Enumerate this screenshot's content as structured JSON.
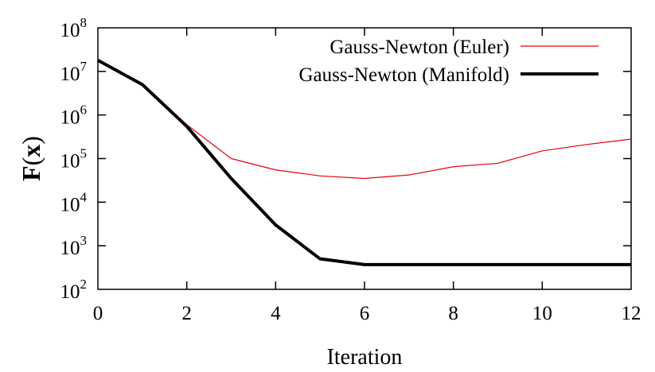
{
  "chart_data": {
    "type": "line",
    "xlabel": "Iteration",
    "ylabel": "F(x)",
    "ylabel_parts": {
      "func": "F",
      "var": "x"
    },
    "xlim": [
      0,
      12
    ],
    "ylim": [
      100,
      100000000
    ],
    "yscale": "log",
    "grid": false,
    "legend_position": "top-right",
    "x_ticks": [
      "0",
      "2",
      "4",
      "6",
      "8",
      "10",
      "12"
    ],
    "y_ticks": [
      {
        "base": "10",
        "exp": "2"
      },
      {
        "base": "10",
        "exp": "3"
      },
      {
        "base": "10",
        "exp": "4"
      },
      {
        "base": "10",
        "exp": "5"
      },
      {
        "base": "10",
        "exp": "6"
      },
      {
        "base": "10",
        "exp": "7"
      },
      {
        "base": "10",
        "exp": "8"
      }
    ],
    "series": [
      {
        "name": "Gauss-Newton (Euler)",
        "color": "#e8000b",
        "x": [
          0,
          1,
          2,
          3,
          4,
          5,
          6,
          7,
          8,
          9,
          10,
          11,
          12
        ],
        "y": [
          18000000,
          5000000,
          600000,
          100000,
          55000,
          40000,
          35000,
          42000,
          65000,
          78000,
          150000,
          210000,
          280000
        ]
      },
      {
        "name": "Gauss-Newton (Manifold)",
        "color": "#000000",
        "x": [
          0,
          1,
          2,
          3,
          4,
          5,
          6,
          7,
          8,
          9,
          10,
          11,
          12
        ],
        "y": [
          18000000,
          5000000,
          550000,
          35000,
          3000,
          500,
          370,
          370,
          370,
          370,
          370,
          370,
          370
        ]
      }
    ]
  }
}
